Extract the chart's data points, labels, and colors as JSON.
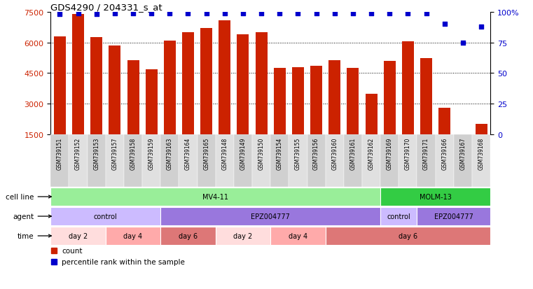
{
  "title": "GDS4290 / 204331_s_at",
  "samples": [
    "GSM739151",
    "GSM739152",
    "GSM739153",
    "GSM739157",
    "GSM739158",
    "GSM739159",
    "GSM739163",
    "GSM739164",
    "GSM739165",
    "GSM739148",
    "GSM739149",
    "GSM739150",
    "GSM739154",
    "GSM739155",
    "GSM739156",
    "GSM739160",
    "GSM739161",
    "GSM739162",
    "GSM739169",
    "GSM739170",
    "GSM739171",
    "GSM739166",
    "GSM739167",
    "GSM739168"
  ],
  "counts": [
    6300,
    7400,
    6250,
    5850,
    5150,
    4700,
    6100,
    6500,
    6700,
    7100,
    6400,
    6500,
    4750,
    4800,
    4850,
    5150,
    4750,
    3500,
    5100,
    6050,
    5250,
    2800,
    1500,
    2000
  ],
  "percentile": [
    98,
    99,
    98,
    99,
    99,
    99,
    99,
    99,
    99,
    99,
    99,
    99,
    99,
    99,
    99,
    99,
    99,
    99,
    99,
    99,
    99,
    90,
    75,
    88
  ],
  "bar_color": "#cc2200",
  "dot_color": "#0000cc",
  "ymin": 1500,
  "ymax": 7500,
  "yticks_left": [
    1500,
    3000,
    4500,
    6000,
    7500
  ],
  "yticks_right": [
    0,
    25,
    50,
    75,
    100
  ],
  "grid_vals": [
    3000,
    4500,
    6000
  ],
  "cell_line_groups": [
    {
      "label": "MV4-11",
      "start": 0,
      "end": 18,
      "color": "#99ee99"
    },
    {
      "label": "MOLM-13",
      "start": 18,
      "end": 24,
      "color": "#33cc44"
    }
  ],
  "agent_groups": [
    {
      "label": "control",
      "start": 0,
      "end": 6,
      "color": "#ccbbff"
    },
    {
      "label": "EPZ004777",
      "start": 6,
      "end": 18,
      "color": "#9977dd"
    },
    {
      "label": "control",
      "start": 18,
      "end": 20,
      "color": "#ccbbff"
    },
    {
      "label": "EPZ004777",
      "start": 20,
      "end": 24,
      "color": "#9977dd"
    }
  ],
  "time_groups": [
    {
      "label": "day 2",
      "start": 0,
      "end": 3,
      "color": "#ffdddd"
    },
    {
      "label": "day 4",
      "start": 3,
      "end": 6,
      "color": "#ffaaaa"
    },
    {
      "label": "day 6",
      "start": 6,
      "end": 9,
      "color": "#dd7777"
    },
    {
      "label": "day 2",
      "start": 9,
      "end": 12,
      "color": "#ffdddd"
    },
    {
      "label": "day 4",
      "start": 12,
      "end": 15,
      "color": "#ffaaaa"
    },
    {
      "label": "day 6",
      "start": 15,
      "end": 24,
      "color": "#dd7777"
    }
  ],
  "legend_items": [
    {
      "label": "count",
      "color": "#cc2200"
    },
    {
      "label": "percentile rank within the sample",
      "color": "#0000cc"
    }
  ]
}
